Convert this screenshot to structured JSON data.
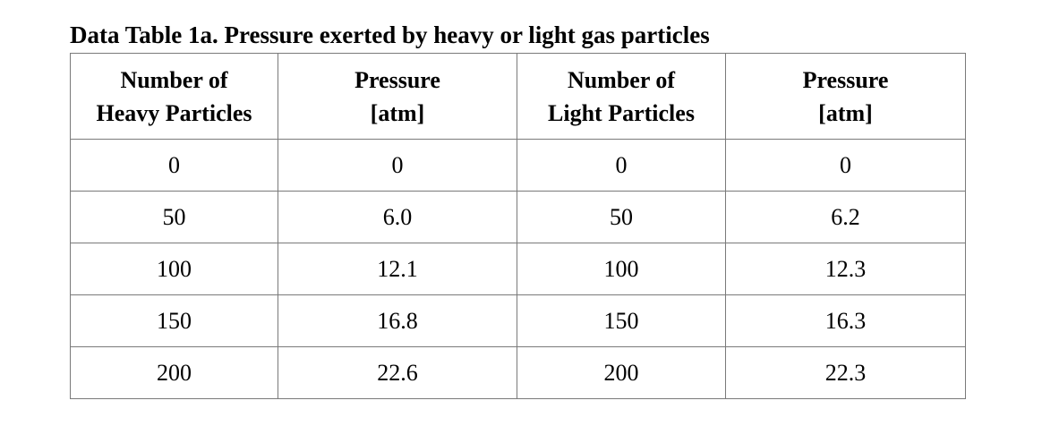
{
  "caption": "Data Table 1a. Pressure exerted by heavy or light gas particles",
  "table": {
    "headers": [
      {
        "line1": "Number of",
        "line2": "Heavy Particles"
      },
      {
        "line1": "Pressure",
        "line2": "[atm]"
      },
      {
        "line1": "Number of",
        "line2": "Light Particles"
      },
      {
        "line1": "Pressure",
        "line2": "[atm]"
      }
    ],
    "rows": [
      [
        "0",
        "0",
        "0",
        "0"
      ],
      [
        "50",
        "6.0",
        "50",
        "6.2"
      ],
      [
        "100",
        "12.1",
        "100",
        "12.3"
      ],
      [
        "150",
        "16.8",
        "150",
        "16.3"
      ],
      [
        "200",
        "22.6",
        "200",
        "22.3"
      ]
    ]
  }
}
